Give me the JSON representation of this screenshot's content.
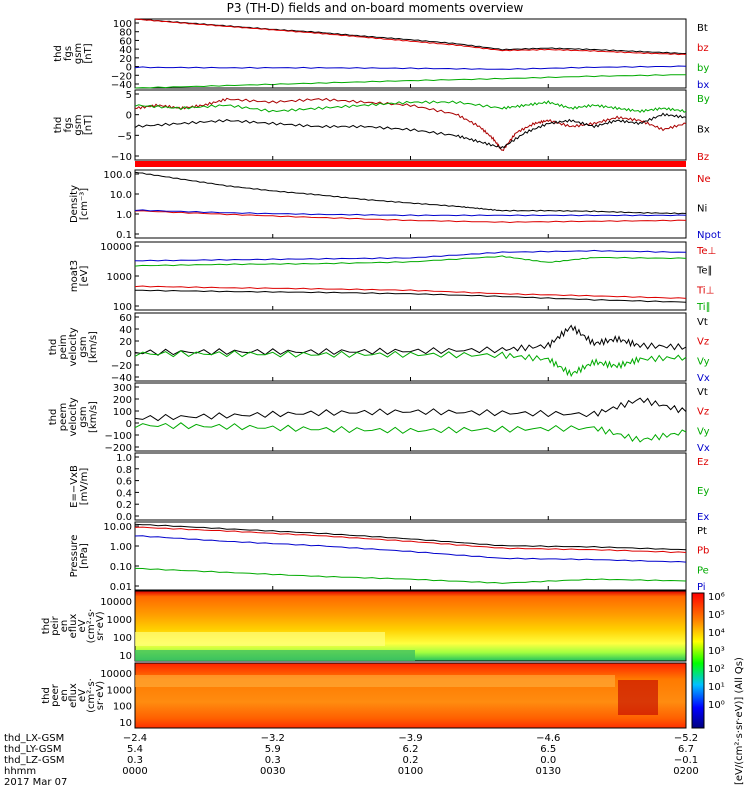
{
  "title": "P3 (TH-D) fields and on-board moments overview",
  "chart_data": {
    "type": "line",
    "panels": [
      {
        "ylabel": [
          "thd",
          "fgs",
          "gsm",
          "[nT]"
        ],
        "yticks": [
          "100",
          "80",
          "60",
          "40",
          "20",
          "0",
          "−20",
          "−40"
        ],
        "ylim": [
          -40,
          100
        ],
        "legend": [
          {
            "name": "Bt",
            "color": "#000000"
          },
          {
            "name": "bz",
            "color": "#dd0000"
          },
          {
            "name": "by",
            "color": "#00aa00"
          },
          {
            "name": "bx",
            "color": "#0000cc"
          }
        ],
        "series": [
          {
            "color": "#000000",
            "x": [
              0,
              10,
              20,
              30,
              40,
              50,
              60,
              70,
              80,
              90,
              100,
              110,
              120
            ],
            "y": [
              100,
              93,
              86,
              79,
              73,
              65,
              58,
              50,
              38,
              41,
              38,
              34,
              30
            ]
          },
          {
            "color": "#dd0000",
            "x": [
              0,
              10,
              20,
              30,
              40,
              50,
              60,
              70,
              80,
              90,
              100,
              110,
              120
            ],
            "y": [
              100,
              92,
              85,
              78,
              71,
              63,
              55,
              47,
              36,
              38,
              35,
              31,
              28
            ]
          },
          {
            "color": "#0000cc",
            "x": [
              0,
              20,
              40,
              60,
              80,
              100,
              120
            ],
            "y": [
              2,
              1,
              1,
              0,
              -2,
              2,
              4
            ]
          },
          {
            "color": "#00aa00",
            "x": [
              0,
              20,
              40,
              60,
              80,
              100,
              120
            ],
            "y": [
              -40,
              -35,
              -30,
              -25,
              -21,
              -16,
              -13
            ]
          }
        ]
      },
      {
        "ylabel": [
          "thd",
          "fgs",
          "gsm",
          "[nT]"
        ],
        "yticks": [
          "5",
          "0",
          "−5",
          "−10"
        ],
        "ylim": [
          -14,
          9
        ],
        "legend": [
          {
            "name": "By",
            "color": "#00aa00"
          },
          {
            "name": "Bx",
            "color": "#000000"
          },
          {
            "name": "Bz",
            "color": "#dd0000"
          }
        ],
        "series": [
          {
            "color": "#aa0000",
            "x": [
              0,
              5,
              10,
              15,
              20,
              30,
              40,
              50,
              60,
              70,
              75,
              78,
              80,
              83,
              87,
              90,
              95,
              100,
              105,
              110,
              115,
              120
            ],
            "y": [
              3,
              4,
              3,
              4,
              6,
              5,
              6,
              5,
              4,
              1,
              -3,
              -7,
              -11,
              -5,
              -2,
              -1,
              -3,
              -2,
              0,
              -1,
              -4,
              -2
            ]
          },
          {
            "color": "#00aa00",
            "x": [
              0,
              10,
              20,
              30,
              40,
              50,
              60,
              70,
              80,
              85,
              90,
              95,
              100,
              105,
              110,
              115,
              120
            ],
            "y": [
              4,
              3,
              4,
              2,
              3,
              4,
              5,
              5,
              3,
              4,
              5,
              3,
              4,
              3,
              2,
              3,
              2
            ]
          },
          {
            "color": "#000000",
            "x": [
              0,
              10,
              20,
              30,
              40,
              50,
              60,
              70,
              75,
              80,
              85,
              90,
              95,
              100,
              105,
              110,
              115,
              120
            ],
            "y": [
              -3,
              -2,
              -1,
              -2,
              -3,
              -3,
              -4,
              -6,
              -8,
              -10,
              -5,
              -2,
              -1,
              -3,
              -1,
              -2,
              1,
              0
            ]
          }
        ]
      },
      {
        "ylabel": [
          "Density",
          "[cm⁻³]"
        ],
        "yticks": [
          "100.0",
          "10.0",
          "1.0",
          "0.1"
        ],
        "ylim": [
          0.1,
          100
        ],
        "log": true,
        "legend": [
          {
            "name": "Ne",
            "color": "#dd0000"
          },
          {
            "name": "Ni",
            "color": "#000000"
          },
          {
            "name": "Npot",
            "color": "#0000cc"
          }
        ],
        "series": [
          {
            "color": "#000000",
            "x": [
              0,
              10,
              20,
              30,
              40,
              50,
              60,
              70,
              75,
              80,
              90,
              100,
              110,
              120
            ],
            "y": [
              80,
              40,
              20,
              12,
              8,
              5,
              3.5,
              2.5,
              2,
              1.6,
              1.6,
              1.5,
              1.3,
              1.2
            ]
          },
          {
            "color": "#dd0000",
            "x": [
              0,
              20,
              40,
              60,
              80,
              100,
              120
            ],
            "y": [
              1.6,
              1.1,
              0.8,
              0.6,
              0.5,
              0.55,
              0.6
            ]
          },
          {
            "color": "#0000cc",
            "x": [
              0,
              20,
              40,
              60,
              80,
              100,
              120
            ],
            "y": [
              1.7,
              1.3,
              1.1,
              1.0,
              1.0,
              1.0,
              1.0
            ]
          }
        ]
      },
      {
        "ylabel": [
          "moat3",
          "[eV]"
        ],
        "yticks": [
          "10000",
          "1000",
          "100"
        ],
        "ylim": [
          100,
          10000
        ],
        "log": true,
        "legend": [
          {
            "name": "Te⊥",
            "color": "#dd0000"
          },
          {
            "name": "Te∥",
            "color": "#000000"
          },
          {
            "name": "Ti⊥",
            "color": "#dd0000"
          },
          {
            "name": "Ti∥",
            "color": "#00aa00"
          }
        ],
        "series": [
          {
            "color": "#0000cc",
            "x": [
              0,
              20,
              40,
              60,
              80,
              100,
              120
            ],
            "y": [
              2800,
              3000,
              3200,
              3400,
              5000,
              5500,
              5000
            ]
          },
          {
            "color": "#00aa00",
            "x": [
              0,
              20,
              40,
              60,
              80,
              90,
              100,
              120
            ],
            "y": [
              2000,
              2200,
              2300,
              2600,
              3800,
              2500,
              3500,
              3300
            ]
          },
          {
            "color": "#dd0000",
            "x": [
              0,
              20,
              40,
              60,
              80,
              100,
              120
            ],
            "y": [
              500,
              450,
              420,
              380,
              300,
              260,
              220
            ]
          },
          {
            "color": "#000000",
            "x": [
              0,
              20,
              40,
              60,
              80,
              100,
              120
            ],
            "y": [
              380,
              350,
              330,
              300,
              250,
              200,
              170
            ]
          }
        ]
      },
      {
        "ylabel": [
          "thd",
          "peim",
          "velocity",
          "gsm",
          "[km/s]"
        ],
        "yticks": [
          "60",
          "40",
          "20",
          "0",
          "−20",
          "−40"
        ],
        "ylim": [
          -40,
          60
        ],
        "legend": [
          {
            "name": "Vt",
            "color": "#000000"
          },
          {
            "name": "Vz",
            "color": "#dd0000"
          },
          {
            "name": "Vy",
            "color": "#00aa00"
          },
          {
            "name": "Vx",
            "color": "#0000cc"
          }
        ],
        "series": [
          {
            "color": "#000000",
            "x": [
              0,
              20,
              40,
              60,
              80,
              90,
              95,
              100,
              105,
              110,
              120
            ],
            "y": [
              2,
              3,
              3,
              4,
              6,
              12,
              40,
              15,
              22,
              12,
              10
            ]
          },
          {
            "color": "#00aa00",
            "x": [
              0,
              20,
              40,
              60,
              80,
              90,
              95,
              100,
              105,
              110,
              120
            ],
            "y": [
              0,
              0,
              -1,
              -1,
              -2,
              -8,
              -30,
              -12,
              -18,
              -8,
              -5
            ]
          }
        ]
      },
      {
        "ylabel": [
          "thd",
          "peem",
          "velocity",
          "gsm",
          "[km/s]"
        ],
        "yticks": [
          "300",
          "200",
          "100",
          "0",
          "−100",
          "−200"
        ],
        "ylim": [
          -200,
          300
        ],
        "legend": [
          {
            "name": "Vt",
            "color": "#000000"
          },
          {
            "name": "Vz",
            "color": "#dd0000"
          },
          {
            "name": "Vy",
            "color": "#00aa00"
          },
          {
            "name": "Vx",
            "color": "#0000cc"
          }
        ],
        "series": [
          {
            "color": "#000000",
            "x": [
              0,
              20,
              40,
              60,
              80,
              100,
              110,
              120
            ],
            "y": [
              40,
              60,
              80,
              90,
              80,
              70,
              180,
              90
            ]
          },
          {
            "color": "#00aa00",
            "x": [
              0,
              20,
              40,
              60,
              80,
              100,
              110,
              120
            ],
            "y": [
              -10,
              -20,
              -40,
              -50,
              -40,
              -30,
              -120,
              -60
            ]
          }
        ]
      },
      {
        "ylabel": [
          "E=−VxB",
          "[mV/m]"
        ],
        "yticks": [
          "1.0",
          "0.8",
          "0.6",
          "0.4",
          "0.2",
          "0.0"
        ],
        "ylim": [
          0,
          1
        ],
        "legend": [
          {
            "name": "Ez",
            "color": "#dd0000"
          },
          {
            "name": "Ey",
            "color": "#00aa00"
          },
          {
            "name": "Ex",
            "color": "#0000cc"
          }
        ],
        "series": []
      },
      {
        "ylabel": [
          "Pressure",
          "[nPa]"
        ],
        "yticks": [
          "10.00",
          "1.00",
          "0.10",
          "0.01"
        ],
        "ylim": [
          0.01,
          10
        ],
        "log": true,
        "legend": [
          {
            "name": "Pt",
            "color": "#000000"
          },
          {
            "name": "Pb",
            "color": "#dd0000"
          },
          {
            "name": "Pe",
            "color": "#00aa00"
          },
          {
            "name": "Pi",
            "color": "#0000cc"
          }
        ],
        "series": [
          {
            "color": "#000000",
            "x": [
              0,
              20,
              40,
              60,
              80,
              100,
              120
            ],
            "y": [
              8,
              5,
              3.2,
              1.8,
              0.9,
              0.8,
              0.6
            ]
          },
          {
            "color": "#dd0000",
            "x": [
              0,
              20,
              40,
              60,
              80,
              100,
              120
            ],
            "y": [
              6,
              4,
              2.5,
              1.4,
              0.7,
              0.6,
              0.45
            ]
          },
          {
            "color": "#0000cc",
            "x": [
              0,
              20,
              40,
              60,
              80,
              100,
              120
            ],
            "y": [
              2.5,
              1.4,
              0.9,
              0.5,
              0.25,
              0.22,
              0.17
            ]
          },
          {
            "color": "#00aa00",
            "x": [
              0,
              20,
              40,
              60,
              80,
              100,
              120
            ],
            "y": [
              0.09,
              0.06,
              0.04,
              0.03,
              0.02,
              0.03,
              0.025
            ]
          }
        ]
      }
    ],
    "spectrograms": [
      {
        "ylabel": [
          "thd",
          "peir",
          "en",
          "eflux",
          "eV",
          "(cm²·s·",
          "sr·eV)"
        ],
        "yticks": [
          "10000",
          "1000",
          "100",
          "10"
        ],
        "ylim": [
          10,
          10000
        ]
      },
      {
        "ylabel": [
          "thd",
          "peer",
          "en",
          "eflux",
          "eV",
          "(cm²·s·",
          "sr·eV)"
        ],
        "yticks": [
          "10000",
          "1000",
          "100",
          "10"
        ],
        "ylim": [
          10,
          10000
        ]
      }
    ],
    "colorbar": {
      "ticks": [
        "10⁶",
        "10⁵",
        "10⁴",
        "10³",
        "10²",
        "10¹",
        "10⁰"
      ],
      "label": "[eV/(cm²·s·sr·eV)] (All Qs)"
    },
    "xaxis": {
      "tick_labels": [
        "−2.4",
        "−3.2",
        "−3.9",
        "−4.6",
        "−5.2"
      ],
      "rows": [
        {
          "name": "thd_LX-GSM",
          "values": [
            "",
            "",
            "",
            "",
            ""
          ]
        },
        {
          "name": "thd_LY-GSM",
          "values": [
            "5.4",
            "5.9",
            "6.2",
            "6.5",
            "6.7"
          ]
        },
        {
          "name": "thd_LZ-GSM",
          "values": [
            "0.3",
            "0.3",
            "0.2",
            "0.0",
            "−0.1"
          ]
        },
        {
          "name": "hhmm",
          "values": [
            "0000",
            "0030",
            "0100",
            "0130",
            "0200"
          ]
        }
      ],
      "date": "2017 Mar 07"
    }
  }
}
